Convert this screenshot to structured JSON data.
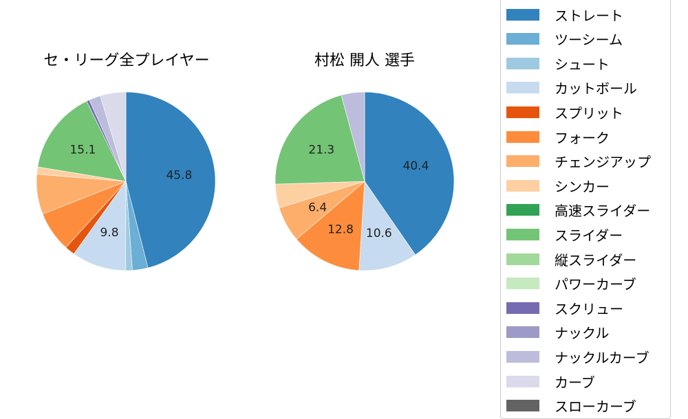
{
  "chart_data": [
    {
      "type": "pie",
      "title": "セ・リーグ全プレイヤー",
      "categories": [
        "ストレート",
        "ツーシーム",
        "シュート",
        "カットボール",
        "スプリット",
        "フォーク",
        "チェンジアップ",
        "シンカー",
        "高速スライダー",
        "スライダー",
        "縦スライダー",
        "パワーカーブ",
        "スクリュー",
        "ナックル",
        "ナックルカーブ",
        "カーブ",
        "スローカーブ"
      ],
      "values": [
        45.8,
        2.8,
        1.2,
        9.8,
        1.8,
        7.3,
        7.2,
        1.3,
        0,
        15.1,
        0,
        0,
        0.5,
        0,
        2.1,
        4.6,
        0
      ],
      "labels_shown": [
        "45.8",
        "9.8",
        "15.1"
      ],
      "start_angle": 90,
      "direction": "clockwise"
    },
    {
      "type": "pie",
      "title": "村松 開人  選手",
      "categories": [
        "ストレート",
        "ツーシーム",
        "シュート",
        "カットボール",
        "スプリット",
        "フォーク",
        "チェンジアップ",
        "シンカー",
        "高速スライダー",
        "スライダー",
        "縦スライダー",
        "パワーカーブ",
        "スクリュー",
        "ナックル",
        "ナックルカーブ",
        "カーブ",
        "スローカーブ"
      ],
      "values": [
        40.4,
        0,
        0,
        10.6,
        0,
        12.8,
        6.4,
        4.3,
        0,
        21.3,
        0,
        0,
        0,
        0,
        4.2,
        0,
        0
      ],
      "labels_shown": [
        "40.4",
        "10.6",
        "12.8",
        "6.4",
        "21.3"
      ],
      "start_angle": 90,
      "direction": "clockwise"
    }
  ],
  "legend": {
    "position": "right",
    "items": [
      {
        "label": "ストレート",
        "color": "#3182bd"
      },
      {
        "label": "ツーシーム",
        "color": "#6baed6"
      },
      {
        "label": "シュート",
        "color": "#9ecae1"
      },
      {
        "label": "カットボール",
        "color": "#c6dbef"
      },
      {
        "label": "スプリット",
        "color": "#e6550d"
      },
      {
        "label": "フォーク",
        "color": "#fd8d3c"
      },
      {
        "label": "チェンジアップ",
        "color": "#fdae6b"
      },
      {
        "label": "シンカー",
        "color": "#fdd0a2"
      },
      {
        "label": "高速スライダー",
        "color": "#31a354"
      },
      {
        "label": "スライダー",
        "color": "#74c476"
      },
      {
        "label": "縦スライダー",
        "color": "#a1d99b"
      },
      {
        "label": "パワーカーブ",
        "color": "#c7e9c0"
      },
      {
        "label": "スクリュー",
        "color": "#756bb1"
      },
      {
        "label": "ナックル",
        "color": "#9e9ac8"
      },
      {
        "label": "ナックルカーブ",
        "color": "#bcbddc"
      },
      {
        "label": "カーブ",
        "color": "#dadaeb"
      },
      {
        "label": "スローカーブ",
        "color": "#636363"
      }
    ]
  }
}
